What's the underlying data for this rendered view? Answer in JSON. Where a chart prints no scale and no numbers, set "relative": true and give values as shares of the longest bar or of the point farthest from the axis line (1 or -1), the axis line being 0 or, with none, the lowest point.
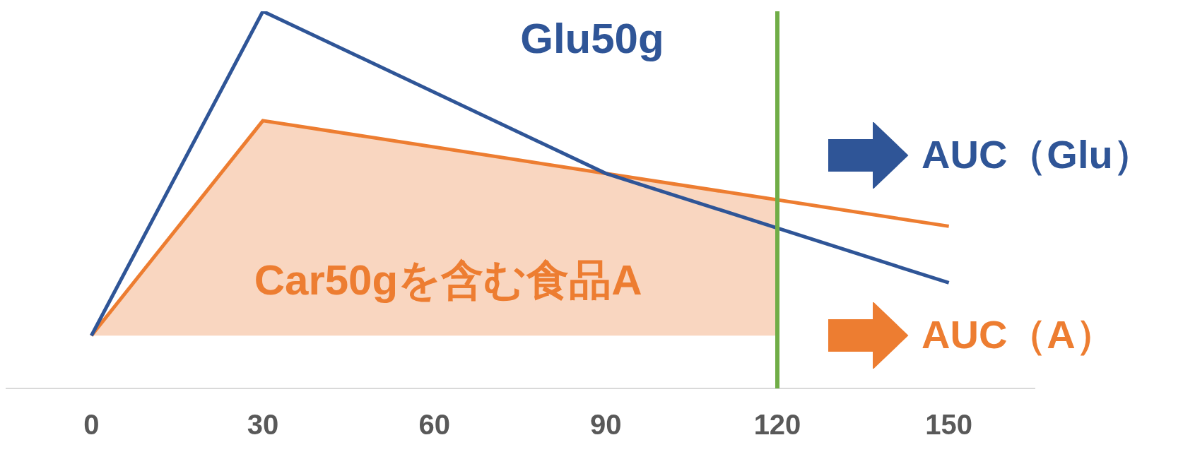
{
  "chart_data": {
    "type": "line",
    "relative": true,
    "series": [
      {
        "name": "Glu50g",
        "color": "#2f5597",
        "x": [
          0,
          30,
          90,
          150
        ],
        "values": [
          0.14,
          1,
          0.57,
          0.28
        ]
      },
      {
        "name": "Car50gを含む食品A",
        "color": "#ed7d31",
        "x": [
          0,
          30,
          150
        ],
        "values": [
          0.14,
          0.71,
          0.43
        ]
      },
      {
        "type": "area",
        "color": "#f9d6c0",
        "x": [
          0,
          30,
          120
        ],
        "values": [
          0.14,
          0.71,
          0.5
        ]
      }
    ],
    "xlim": [
      -15,
      165
    ],
    "xticks": [
      0,
      30,
      60,
      90,
      120,
      150
    ],
    "ref_lines": [
      {
        "axis": "x",
        "value": 120,
        "color": "#70ad47"
      }
    ],
    "annotations": [
      "AUC（Glu）",
      "AUC（A）"
    ],
    "grid": false,
    "legend": false,
    "marker": "none",
    "line_style": "solid"
  }
}
